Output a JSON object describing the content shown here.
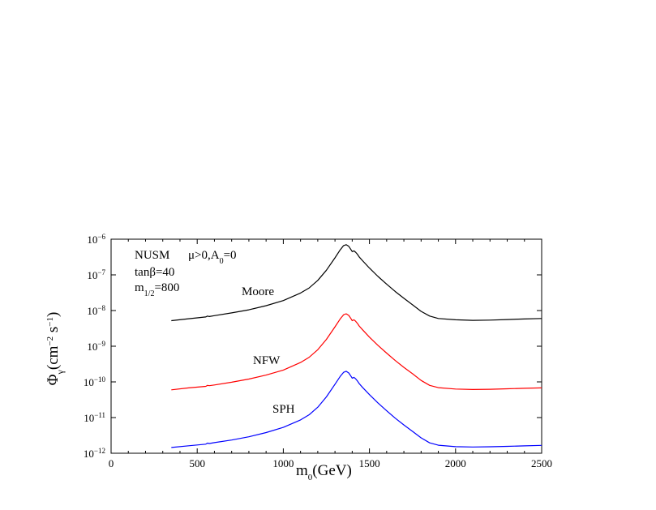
{
  "chart_data": {
    "type": "line",
    "title": "",
    "xlabel": "m0(GeV)",
    "ylabel": "Φγ(cm−2 s−1)",
    "xlim": [
      0,
      2500
    ],
    "ylim_log10": [
      -12,
      -6
    ],
    "y_scale": "log",
    "grid": false,
    "x_ticks": [
      0,
      500,
      1000,
      1500,
      2000,
      2500
    ],
    "y_ticks": [
      "10^-12",
      "10^-11",
      "10^-10",
      "10^-9",
      "10^-8",
      "10^-7",
      "10^-6"
    ],
    "annotations": {
      "model": "NUSM",
      "mu_a0": "μ>0,A0=0",
      "tanb": "tanβ=40",
      "m12": "m1/2=800"
    },
    "series": [
      {
        "name": "Moore",
        "color": "#000000",
        "x": [
          350,
          450,
          550,
          560,
          570,
          600,
          700,
          800,
          900,
          1000,
          1100,
          1150,
          1200,
          1250,
          1300,
          1330,
          1350,
          1365,
          1380,
          1395,
          1400,
          1410,
          1420,
          1430,
          1440,
          1460,
          1500,
          1550,
          1600,
          1650,
          1700,
          1750,
          1800,
          1850,
          1900,
          2000,
          2100,
          2200,
          2300,
          2400,
          2500
        ],
        "y": [
          5.2e-09,
          5.9e-09,
          6.6e-09,
          7e-09,
          6.8e-09,
          7.2e-09,
          8.6e-09,
          1.05e-08,
          1.37e-08,
          1.9e-08,
          3.1e-08,
          4.3e-08,
          7e-08,
          1.35e-07,
          3e-07,
          5e-07,
          6.6e-07,
          7e-07,
          6.3e-07,
          4.9e-07,
          4.5e-07,
          4.7e-07,
          4.3e-07,
          3.8e-07,
          3.2e-07,
          2.5e-07,
          1.55e-07,
          9e-08,
          5.5e-08,
          3.4e-08,
          2.2e-08,
          1.45e-08,
          9.5e-09,
          7e-09,
          6e-09,
          5.5e-09,
          5.3e-09,
          5.4e-09,
          5.6e-09,
          5.8e-09,
          6e-09
        ]
      },
      {
        "name": "NFW",
        "color": "#ff0000",
        "x": [
          350,
          450,
          550,
          560,
          570,
          600,
          700,
          800,
          900,
          1000,
          1100,
          1150,
          1200,
          1250,
          1300,
          1330,
          1350,
          1365,
          1380,
          1395,
          1400,
          1410,
          1420,
          1430,
          1440,
          1460,
          1500,
          1550,
          1600,
          1650,
          1700,
          1750,
          1800,
          1850,
          1900,
          2000,
          2100,
          2200,
          2300,
          2400,
          2500
        ],
        "y": [
          6e-11,
          6.8e-11,
          7.5e-11,
          8e-11,
          7.8e-11,
          8.2e-11,
          9.8e-11,
          1.2e-10,
          1.55e-10,
          2.15e-10,
          3.5e-10,
          4.9e-10,
          8e-10,
          1.55e-09,
          3.5e-09,
          5.8e-09,
          7.6e-09,
          8.1e-09,
          7.3e-09,
          5.7e-09,
          5.2e-09,
          5.5e-09,
          5e-09,
          4.4e-09,
          3.7e-09,
          2.9e-09,
          1.8e-09,
          1.05e-09,
          6.4e-10,
          3.95e-10,
          2.55e-10,
          1.7e-10,
          1.1e-10,
          8e-11,
          6.9e-11,
          6.3e-11,
          6.1e-11,
          6.2e-11,
          6.4e-11,
          6.6e-11,
          6.8e-11
        ]
      },
      {
        "name": "SPH",
        "color": "#0000ff",
        "x": [
          350,
          450,
          550,
          560,
          570,
          600,
          700,
          800,
          900,
          1000,
          1100,
          1150,
          1200,
          1250,
          1300,
          1330,
          1350,
          1365,
          1380,
          1395,
          1400,
          1410,
          1420,
          1430,
          1440,
          1460,
          1500,
          1550,
          1600,
          1650,
          1700,
          1750,
          1800,
          1850,
          1900,
          2000,
          2100,
          2200,
          2300,
          2400,
          2500
        ],
        "y": [
          1.45e-12,
          1.62e-12,
          1.8e-12,
          1.92e-12,
          1.87e-12,
          1.98e-12,
          2.35e-12,
          2.9e-12,
          3.8e-12,
          5.3e-12,
          8.6e-12,
          1.2e-11,
          1.95e-11,
          3.8e-11,
          8.6e-11,
          1.42e-10,
          1.85e-10,
          1.98e-10,
          1.78e-10,
          1.39e-10,
          1.27e-10,
          1.34e-10,
          1.22e-10,
          1.07e-10,
          9e-11,
          7e-11,
          4.4e-11,
          2.55e-11,
          1.55e-11,
          9.6e-12,
          6.2e-12,
          4.1e-12,
          2.7e-12,
          1.95e-12,
          1.68e-12,
          1.53e-12,
          1.5e-12,
          1.52e-12,
          1.56e-12,
          1.61e-12,
          1.66e-12
        ]
      }
    ]
  }
}
